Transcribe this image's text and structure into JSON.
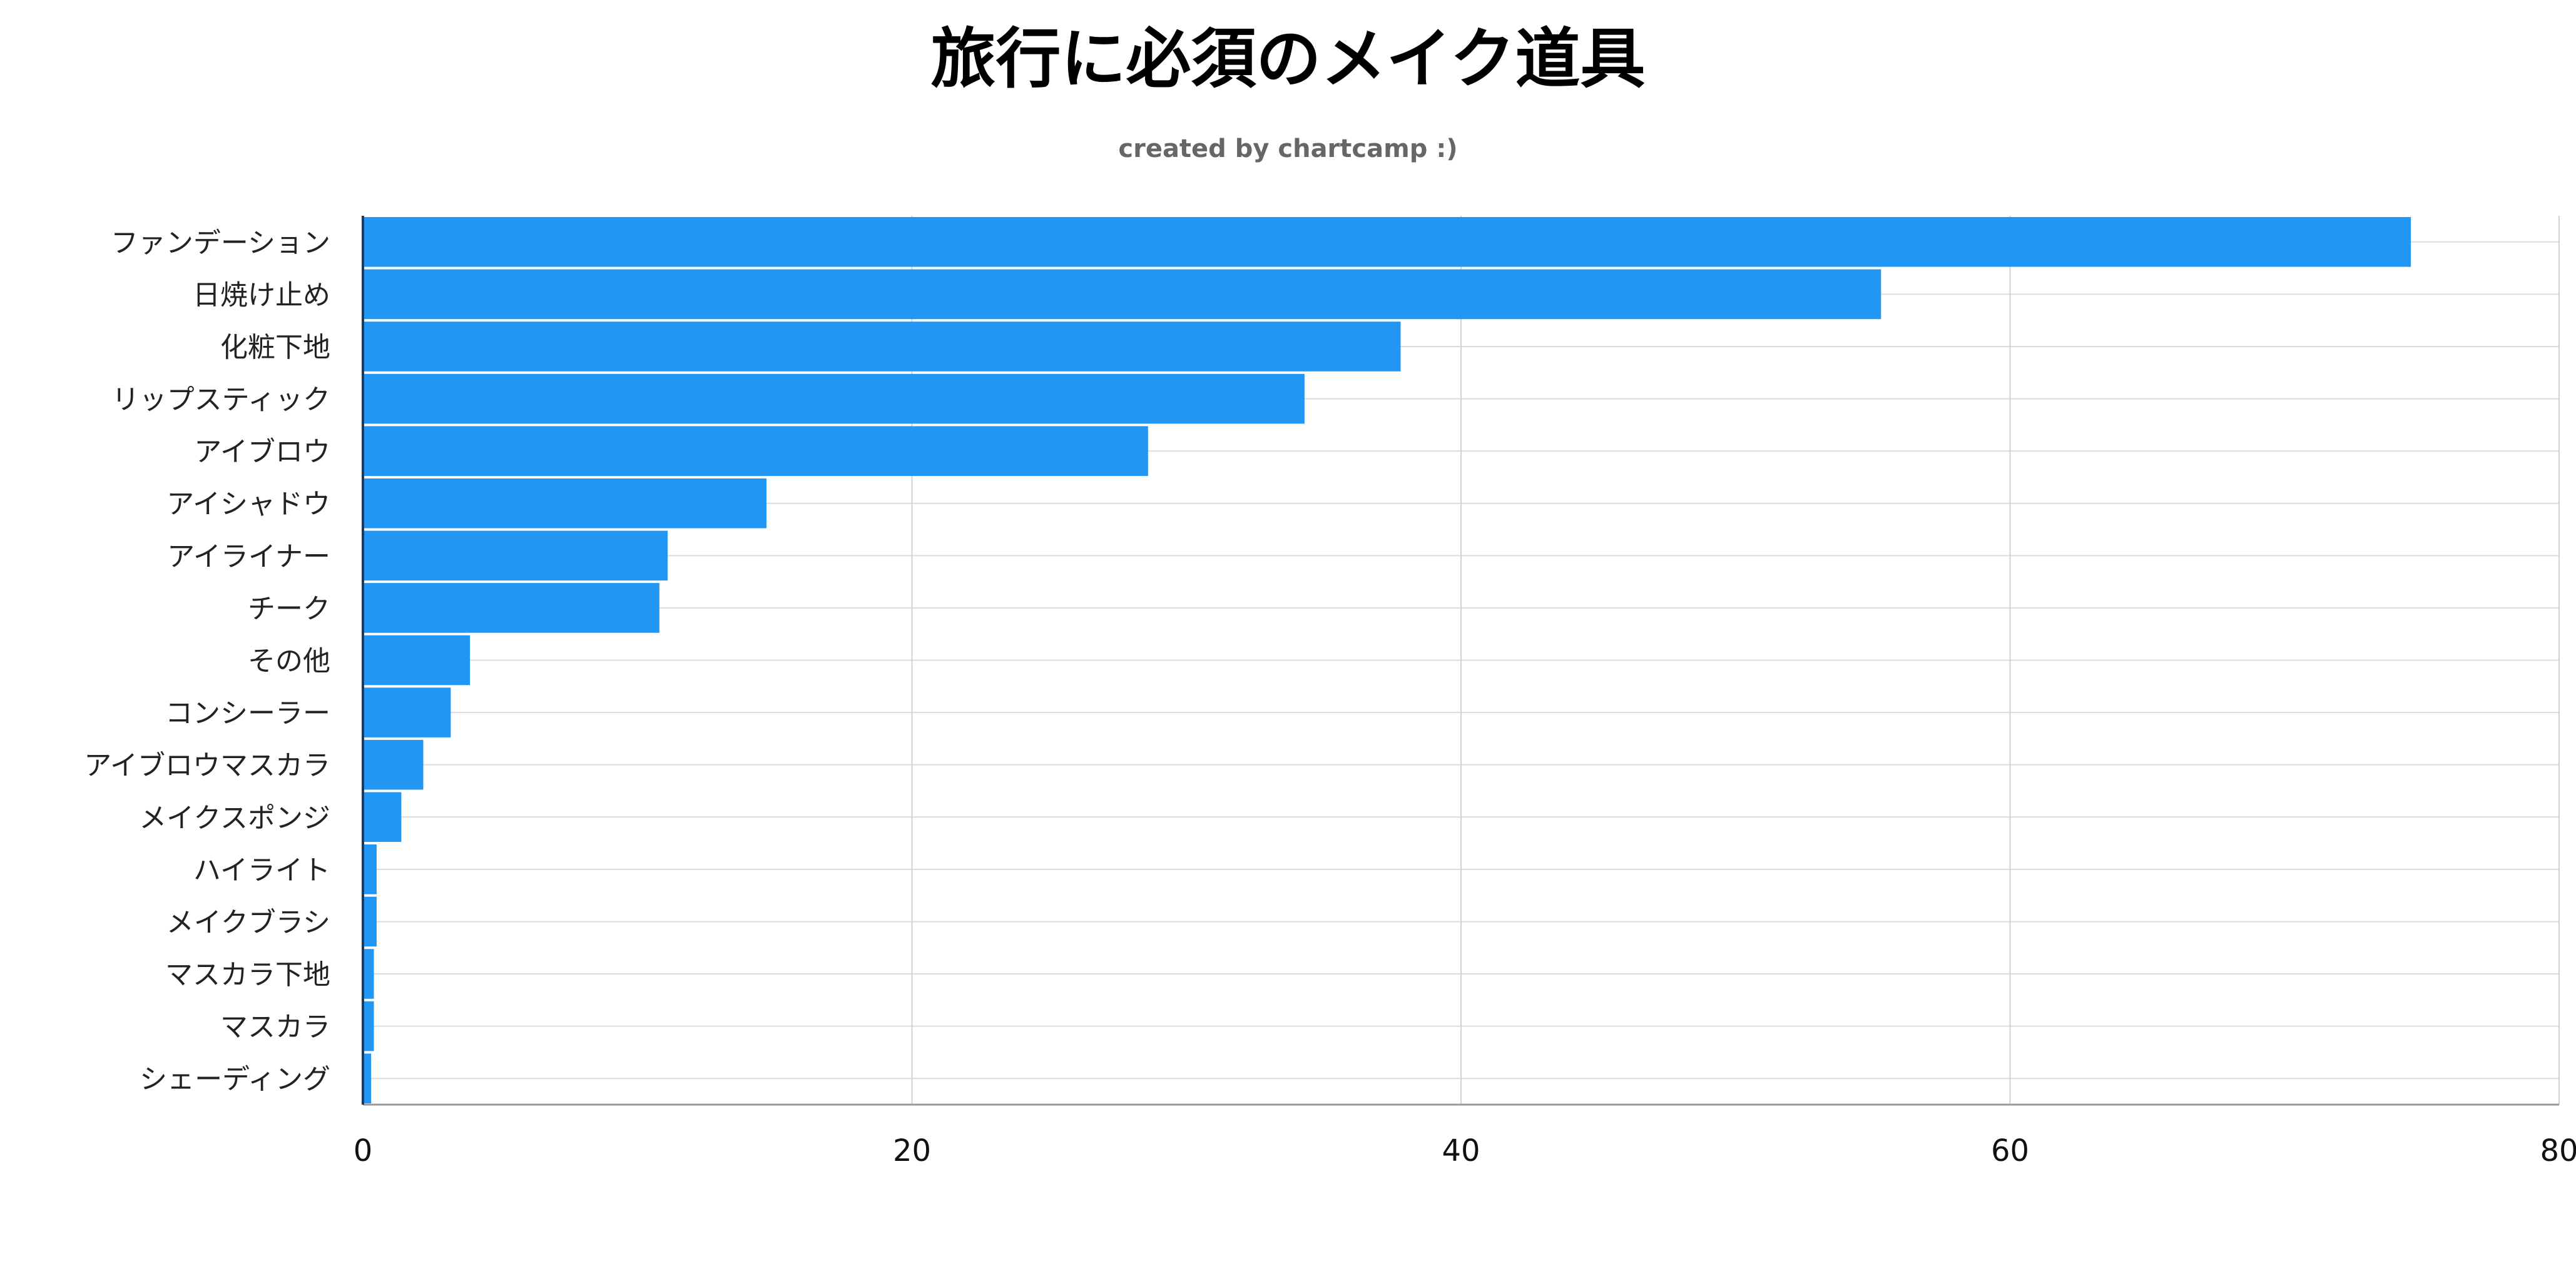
{
  "chart_data": {
    "type": "bar",
    "orientation": "horizontal",
    "title": "旅行に必須のメイク道具",
    "subtitle": "created by chartcamp :)",
    "xlabel": "",
    "ylabel": "",
    "xlim": [
      0,
      80
    ],
    "x_ticks": [
      0,
      20,
      40,
      60,
      80
    ],
    "grid": true,
    "legend": "none",
    "bar_color": "#2196F3",
    "categories": [
      "ファンデーション",
      "日焼け止め",
      "化粧下地",
      "リップスティック",
      "アイブロウ",
      "アイシャドウ",
      "アイライナー",
      "チーク",
      "その他",
      "コンシーラー",
      "アイブロウマスカラ",
      "メイクスポンジ",
      "ハイライト",
      "メイクブラシ",
      "マスカラ下地",
      "マスカラ",
      "シェーディング"
    ],
    "values": [
      74.6,
      55.3,
      37.8,
      34.3,
      28.6,
      14.7,
      11.1,
      10.8,
      3.9,
      3.2,
      2.2,
      1.4,
      0.5,
      0.5,
      0.4,
      0.4,
      0.3
    ]
  }
}
